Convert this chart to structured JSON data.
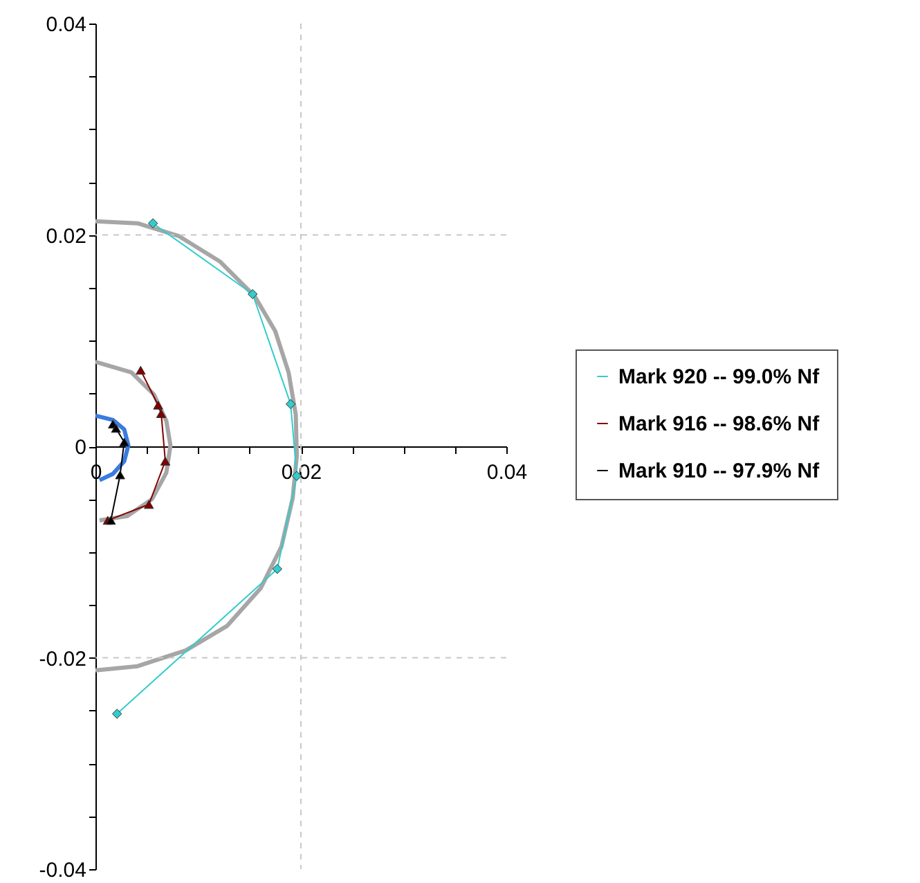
{
  "chart_data": {
    "type": "line",
    "xlim": [
      0,
      0.04
    ],
    "ylim": [
      -0.04,
      0.04
    ],
    "xticks": [
      0,
      {
        "value": 0.005,
        "label": null
      },
      {
        "value": 0.01,
        "label": null
      },
      {
        "value": 0.015,
        "label": null
      },
      0.02,
      {
        "value": 0.025,
        "label": null
      },
      {
        "value": 0.03,
        "label": null
      },
      {
        "value": 0.035,
        "label": null
      },
      0.04
    ],
    "yticks": [
      -0.04,
      {
        "value": -0.035,
        "label": null
      },
      {
        "value": -0.03,
        "label": null
      },
      {
        "value": -0.025,
        "label": null
      },
      -0.02,
      {
        "value": -0.015,
        "label": null
      },
      {
        "value": -0.01,
        "label": null
      },
      {
        "value": -0.005,
        "label": null
      },
      0,
      {
        "value": 0.005,
        "label": null
      },
      {
        "value": 0.01,
        "label": null
      },
      {
        "value": 0.015,
        "label": null
      },
      0.02,
      {
        "value": 0.025,
        "label": null
      },
      {
        "value": 0.03,
        "label": null
      },
      {
        "value": 0.035,
        "label": null
      },
      0.04
    ],
    "grid": true,
    "legend": "right",
    "series": [
      {
        "color": "#a6a6a6",
        "marker": "none",
        "x": [
          0,
          0.0041,
          0.0081,
          0.0121,
          0.0155,
          0.0175,
          0.0188,
          0.0195,
          0.0196,
          0.0192,
          0.0181,
          0.0161,
          0.0128,
          0.0088,
          0.0041,
          0
        ],
        "values": [
          0.0213,
          0.0211,
          0.0199,
          0.0175,
          0.0142,
          0.0109,
          0.007,
          0.003,
          -0.0009,
          -0.0049,
          -0.0095,
          -0.0134,
          -0.017,
          -0.0193,
          -0.0208,
          -0.0212
        ]
      },
      {
        "color": "#a6a6a6",
        "marker": "none",
        "x": [
          0,
          0.0035,
          0.0057,
          0.0069,
          0.0073,
          0.0069,
          0.0055,
          0.0031,
          0.0004
        ],
        "values": [
          0.008,
          0.007,
          0.0049,
          0.0024,
          0.0001,
          -0.0025,
          -0.005,
          -0.0066,
          -0.007
        ]
      },
      {
        "color": "#3a7be0",
        "marker": "none",
        "x": [
          0,
          0.0017,
          0.0028,
          0.0032,
          0.0028,
          0.0017,
          0.0004
        ],
        "values": [
          0.0029,
          0.0025,
          0.0016,
          0.0001,
          -0.0014,
          -0.0026,
          -0.0032
        ]
      },
      {
        "name": "Mark 920 -- 99.0% Nf",
        "color": "#33cccc",
        "marker": "diamond",
        "x": [
          0.0056,
          0.0153,
          0.019,
          0.0196,
          0.0177,
          0.0021
        ],
        "values": [
          0.0211,
          0.0144,
          0.004,
          -0.0028,
          -0.0116,
          -0.0253
        ]
      },
      {
        "name": "Mark 916 -- 98.6% Nf",
        "color": "#800000",
        "marker": "triangle",
        "x": [
          0.0044,
          0.0061,
          0.0064,
          0.0068,
          0.0052,
          0.0012
        ],
        "values": [
          0.0072,
          0.0039,
          0.0031,
          -0.0014,
          -0.0055,
          -0.007
        ]
      },
      {
        "name": "Mark 910 -- 97.9% Nf",
        "color": "#000000",
        "marker": "triangle",
        "x": [
          0.0017,
          0.002,
          0.0028,
          0.0024,
          0.0015
        ],
        "values": [
          0.0021,
          0.0017,
          0.0004,
          -0.0027,
          -0.007
        ]
      }
    ]
  }
}
